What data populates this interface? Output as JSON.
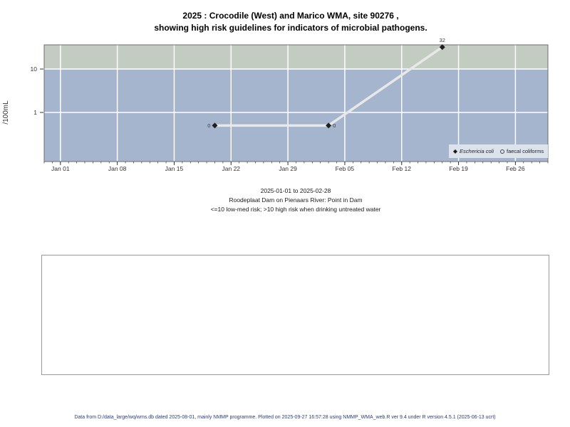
{
  "title": {
    "line1": "2025 : Crocodile (West) and Marico WMA, site 90276 ,",
    "line2": "showing high risk guidelines for indicators of microbial pathogens."
  },
  "subtitle": {
    "line1": "2025-01-01 to 2025-02-28",
    "line2": "Roodeplaat Dam on Pienaars River: Point in Dam",
    "line3": "<=10 low-med risk; >10 high risk when drinking untreated water"
  },
  "footer": "Data from D:/data_large/wq/wms.db dated 2025-08-01, mainly NMMP programme. Plotted on 2025-09-27 16:57:28 using NMMP_WMA_web.R ver 9.4 under R version 4.5.1 (2025-06-13 ucrt)",
  "chart_data": {
    "type": "line",
    "ylabel": "/100mL",
    "y_scale": "log10",
    "ylim": [
      0.074,
      36.1
    ],
    "y_ticks": [
      {
        "value": 10,
        "label": "10"
      },
      {
        "value": 1,
        "label": "1"
      }
    ],
    "risk_threshold": 10,
    "x_epoch": "2025-01-01",
    "x_domain_days": [
      -2,
      60
    ],
    "x_major_ticks": [
      {
        "day": 0,
        "label": "Jan 01"
      },
      {
        "day": 7,
        "label": "Jan 08"
      },
      {
        "day": 14,
        "label": "Jan 15"
      },
      {
        "day": 21,
        "label": "Jan 22"
      },
      {
        "day": 28,
        "label": "Jan 29"
      },
      {
        "day": 35,
        "label": "Feb 05"
      },
      {
        "day": 42,
        "label": "Feb 12"
      },
      {
        "day": 49,
        "label": "Feb 19"
      },
      {
        "day": 56,
        "label": "Feb 26"
      }
    ],
    "x_minor_tick_every_days": 1,
    "series": [
      {
        "name": "Eschericia coli",
        "marker": "diamond-filled",
        "points": [
          {
            "date": "2025-01-20",
            "day": 19,
            "value": 0,
            "plotted_value": 0.5,
            "label": "0",
            "label_side": "left"
          },
          {
            "date": "2025-02-03",
            "day": 33,
            "value": 0,
            "plotted_value": 0.5,
            "label": "0",
            "label_side": "right"
          },
          {
            "date": "2025-02-17",
            "day": 47,
            "value": 32,
            "plotted_value": 32,
            "label": "32",
            "label_side": "top"
          }
        ]
      }
    ],
    "legend": {
      "position": "bottom-right",
      "entries": [
        {
          "marker": "diamond-filled",
          "label": "Eschericia coli",
          "italic": true
        },
        {
          "marker": "circle-open",
          "label": "faecal coliforms",
          "italic": false
        }
      ]
    },
    "colors": {
      "band_high_risk": "#c2ccc0",
      "band_low_risk": "#a4b5cd",
      "gridline": "#ffffff",
      "line": "#e8e8e8",
      "marker": "#1f1f1f",
      "point_label": "#3a3a3a",
      "tick": "#333333",
      "tick_label": "#333333",
      "plot_border": "#6e6e6e",
      "legend_bg": "#dce3ed",
      "footer_text": "#2c3c7c"
    }
  }
}
